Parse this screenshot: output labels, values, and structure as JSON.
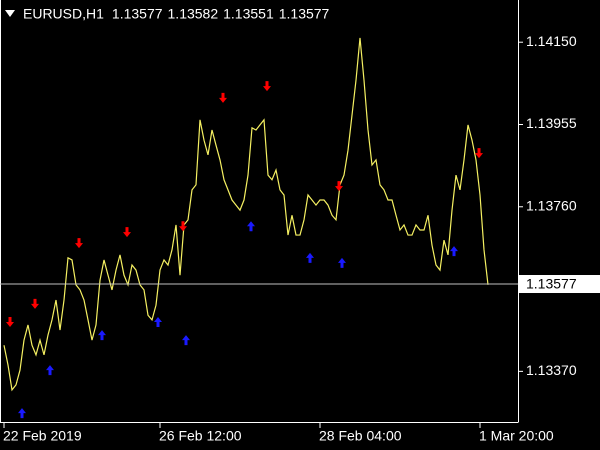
{
  "chart_data": {
    "type": "line",
    "title": "EURUSD,H1",
    "ohlc": [
      1.13577,
      1.13582,
      1.13551,
      1.13577
    ],
    "current_price": 1.13577,
    "series": [
      {
        "color": "#f5f062",
        "values": [
          1.13432,
          1.13385,
          1.13326,
          1.13338,
          1.13373,
          1.13444,
          1.1348,
          1.13432,
          1.13409,
          1.13444,
          1.13409,
          1.13456,
          1.13492,
          1.13539,
          1.13468,
          1.13539,
          1.13639,
          1.13634,
          1.13575,
          1.13563,
          1.13539,
          1.13492,
          1.13444,
          1.1348,
          1.13586,
          1.13634,
          1.13598,
          1.13563,
          1.1361,
          1.13646,
          1.13598,
          1.13575,
          1.13622,
          1.1361,
          1.13575,
          1.13563,
          1.13503,
          1.13492,
          1.13527,
          1.1361,
          1.13634,
          1.13622,
          1.13658,
          1.13717,
          1.13598,
          1.13717,
          1.13729,
          1.138,
          1.13812,
          1.13966,
          1.13918,
          1.13883,
          1.13942,
          1.13906,
          1.13871,
          1.13824,
          1.138,
          1.13776,
          1.13764,
          1.13752,
          1.13776,
          1.13835,
          1.13947,
          1.13942,
          1.13954,
          1.13966,
          1.13835,
          1.13824,
          1.13847,
          1.138,
          1.13788,
          1.13693,
          1.1374,
          1.13693,
          1.13693,
          1.13729,
          1.13788,
          1.13776,
          1.13764,
          1.13776,
          1.13776,
          1.13764,
          1.1374,
          1.13729,
          1.13812,
          1.13835,
          1.13894,
          1.13977,
          1.1406,
          1.1416,
          1.1406,
          1.13942,
          1.13859,
          1.13871,
          1.13812,
          1.138,
          1.13776,
          1.13776,
          1.1374,
          1.13705,
          1.13717,
          1.13693,
          1.13693,
          1.13717,
          1.13705,
          1.13705,
          1.1374,
          1.13669,
          1.13622,
          1.1361,
          1.13681,
          1.13646,
          1.13752,
          1.13835,
          1.138,
          1.13871,
          1.13954,
          1.13918,
          1.13871,
          1.13788,
          1.13658,
          1.13575
        ]
      }
    ],
    "sell_arrows": {
      "color": "#ff0000",
      "x": [
        1.5,
        7.75,
        18.75,
        30.75,
        44.75,
        54.75,
        65.75,
        83.75,
        118.75
      ],
      "values": [
        1.13487,
        1.1353,
        1.13674,
        1.137,
        1.13714,
        1.14018,
        1.14046,
        1.13809,
        1.13887
      ]
    },
    "buy_arrows": {
      "color": "#1a1aff",
      "x": [
        4.5,
        11.5,
        24.5,
        38.5,
        45.5,
        61.75,
        76.5,
        84.5,
        112.5
      ],
      "values": [
        1.13271,
        1.13373,
        1.13456,
        1.13487,
        1.13444,
        1.13714,
        1.13639,
        1.13627,
        1.13655
      ]
    },
    "xlim": [
      -1,
      128.5
    ],
    "xticks": [
      {
        "value": 0,
        "label": "22 Feb 2019"
      },
      {
        "value": 39,
        "label": "26 Feb 12:00"
      },
      {
        "value": 79,
        "label": "28 Feb 04:00"
      },
      {
        "value": 119,
        "label": "1 Mar 20:00"
      }
    ],
    "ylim": [
      1.1325,
      1.1425
    ],
    "yticks": [
      {
        "value": 1.1415,
        "label": "1.14150"
      },
      {
        "value": 1.13955,
        "label": "1.13955"
      },
      {
        "value": 1.1376,
        "label": "1.13760"
      },
      {
        "value": 1.1337,
        "label": "1.13370"
      }
    ]
  }
}
